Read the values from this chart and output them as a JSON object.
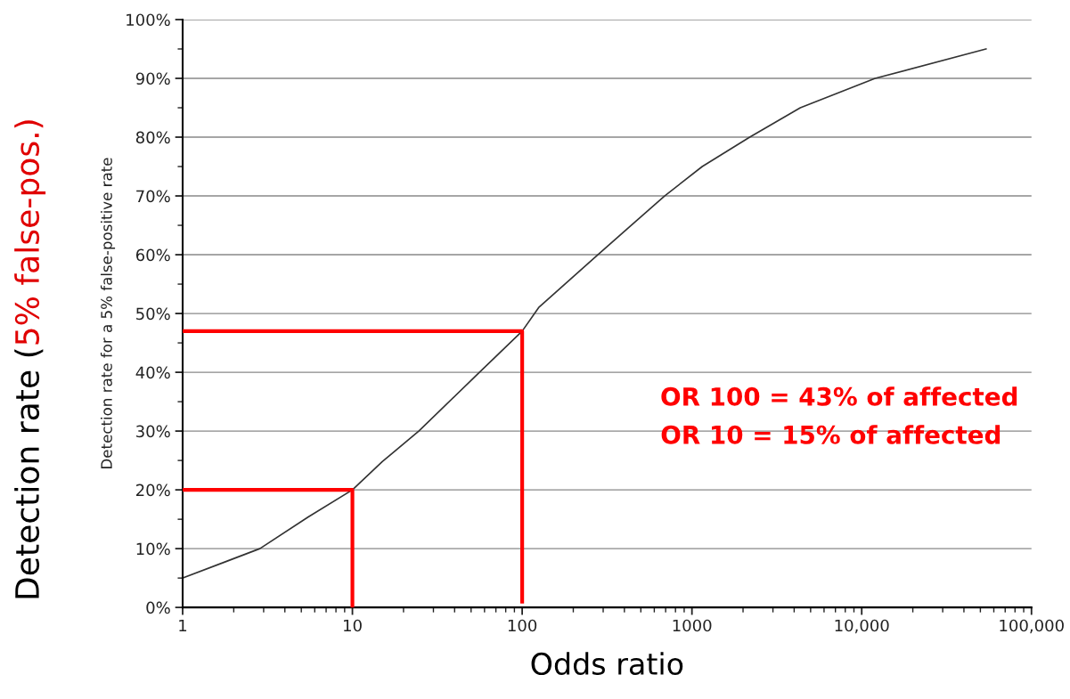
{
  "chart_data": {
    "type": "line",
    "xlabel": "Odds ratio",
    "ylabel": "Detection rate for a 5% false-positive rate",
    "log": "x",
    "grid": "y",
    "marker": "none",
    "line_style": "solid",
    "xlim": [
      1,
      100000
    ],
    "ylim": [
      0,
      100
    ],
    "xticks": [
      1,
      10,
      100,
      1000,
      {
        "value": 10000,
        "label": "10,000"
      },
      {
        "value": 100000,
        "label": "100,000"
      }
    ],
    "yticks": [
      {
        "value": 0,
        "label": "0%"
      },
      {
        "value": 10,
        "label": "10%"
      },
      {
        "value": 20,
        "label": "20%"
      },
      {
        "value": 30,
        "label": "30%"
      },
      {
        "value": 40,
        "label": "40%"
      },
      {
        "value": 50,
        "label": "50%"
      },
      {
        "value": 60,
        "label": "60%"
      },
      {
        "value": 70,
        "label": "70%"
      },
      {
        "value": 80,
        "label": "80%"
      },
      {
        "value": 90,
        "label": "90%"
      },
      {
        "value": 100,
        "label": "100%"
      }
    ],
    "series": [
      {
        "color": "#333333",
        "x": [
          1,
          2.85,
          5.5,
          10,
          15,
          24.6,
          56,
          100,
          125,
          279,
          690,
          1150,
          2190,
          4350,
          12000,
          54000
        ],
        "values": [
          5,
          10,
          15.4,
          20,
          24.8,
          30,
          40,
          47,
          51,
          60,
          70,
          75,
          80,
          85,
          90,
          95
        ]
      },
      {
        "color": "#ff0000",
        "x": [
          1,
          10,
          10
        ],
        "values": [
          20,
          20,
          0
        ]
      },
      {
        "color": "#ff0000",
        "x": [
          1,
          100,
          100
        ],
        "values": [
          47,
          47,
          1
        ]
      }
    ],
    "annotations": [
      "Detection rate (",
      "5% false-pos.)",
      "OR 100 = 43% of affected",
      "OR 10 = 15% of affected"
    ]
  }
}
